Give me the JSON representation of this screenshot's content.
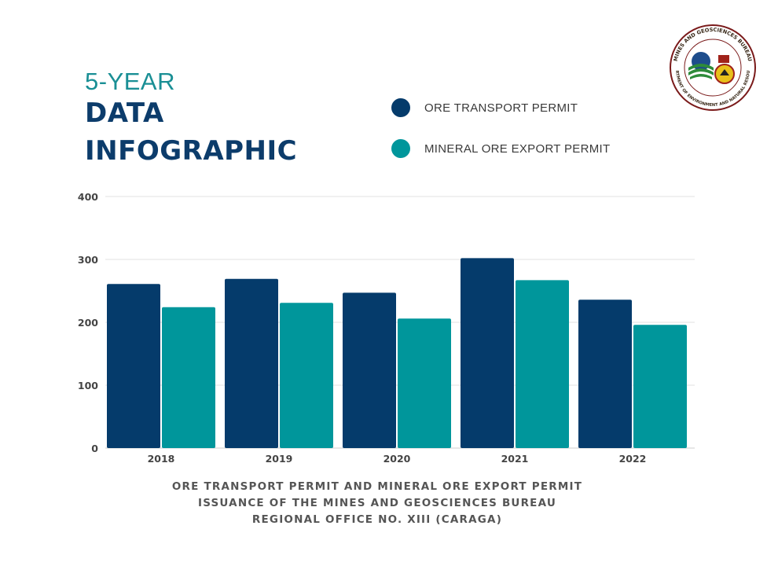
{
  "header": {
    "subtitle": "5-YEAR",
    "title_line1": "DATA",
    "title_line2": "INFOGRAPHIC"
  },
  "colors": {
    "ore_transport": "#053b6b",
    "mineral_export": "#00969b",
    "title_navy": "#0c3c6b",
    "title_teal": "#1a8f95"
  },
  "logo": {
    "ring_text_top": "MINES AND GEOSCIENCES BUREAU",
    "ring_text_bottom": "DEPARTMENT OF ENVIRONMENT AND NATURAL RESOURCES"
  },
  "caption": {
    "line1": "ORE TRANSPORT PERMIT AND MINERAL ORE EXPORT PERMIT",
    "line2": "ISSUANCE OF THE MINES AND GEOSCIENCES BUREAU",
    "line3": "REGIONAL OFFICE NO. XIII (CARAGA)"
  },
  "chart_data": {
    "type": "bar",
    "categories": [
      "2018",
      "2019",
      "2020",
      "2021",
      "2022"
    ],
    "series": [
      {
        "name": "ORE TRANSPORT PERMIT",
        "color": "#053b6b",
        "values": [
          261,
          269,
          247,
          302,
          236
        ]
      },
      {
        "name": "MINERAL ORE EXPORT PERMIT",
        "color": "#00969b",
        "values": [
          224,
          231,
          206,
          267,
          196
        ]
      }
    ],
    "yticks": [
      0,
      100,
      200,
      300,
      400
    ],
    "ylim": [
      0,
      400
    ],
    "grid": true,
    "legend_position": "top"
  }
}
